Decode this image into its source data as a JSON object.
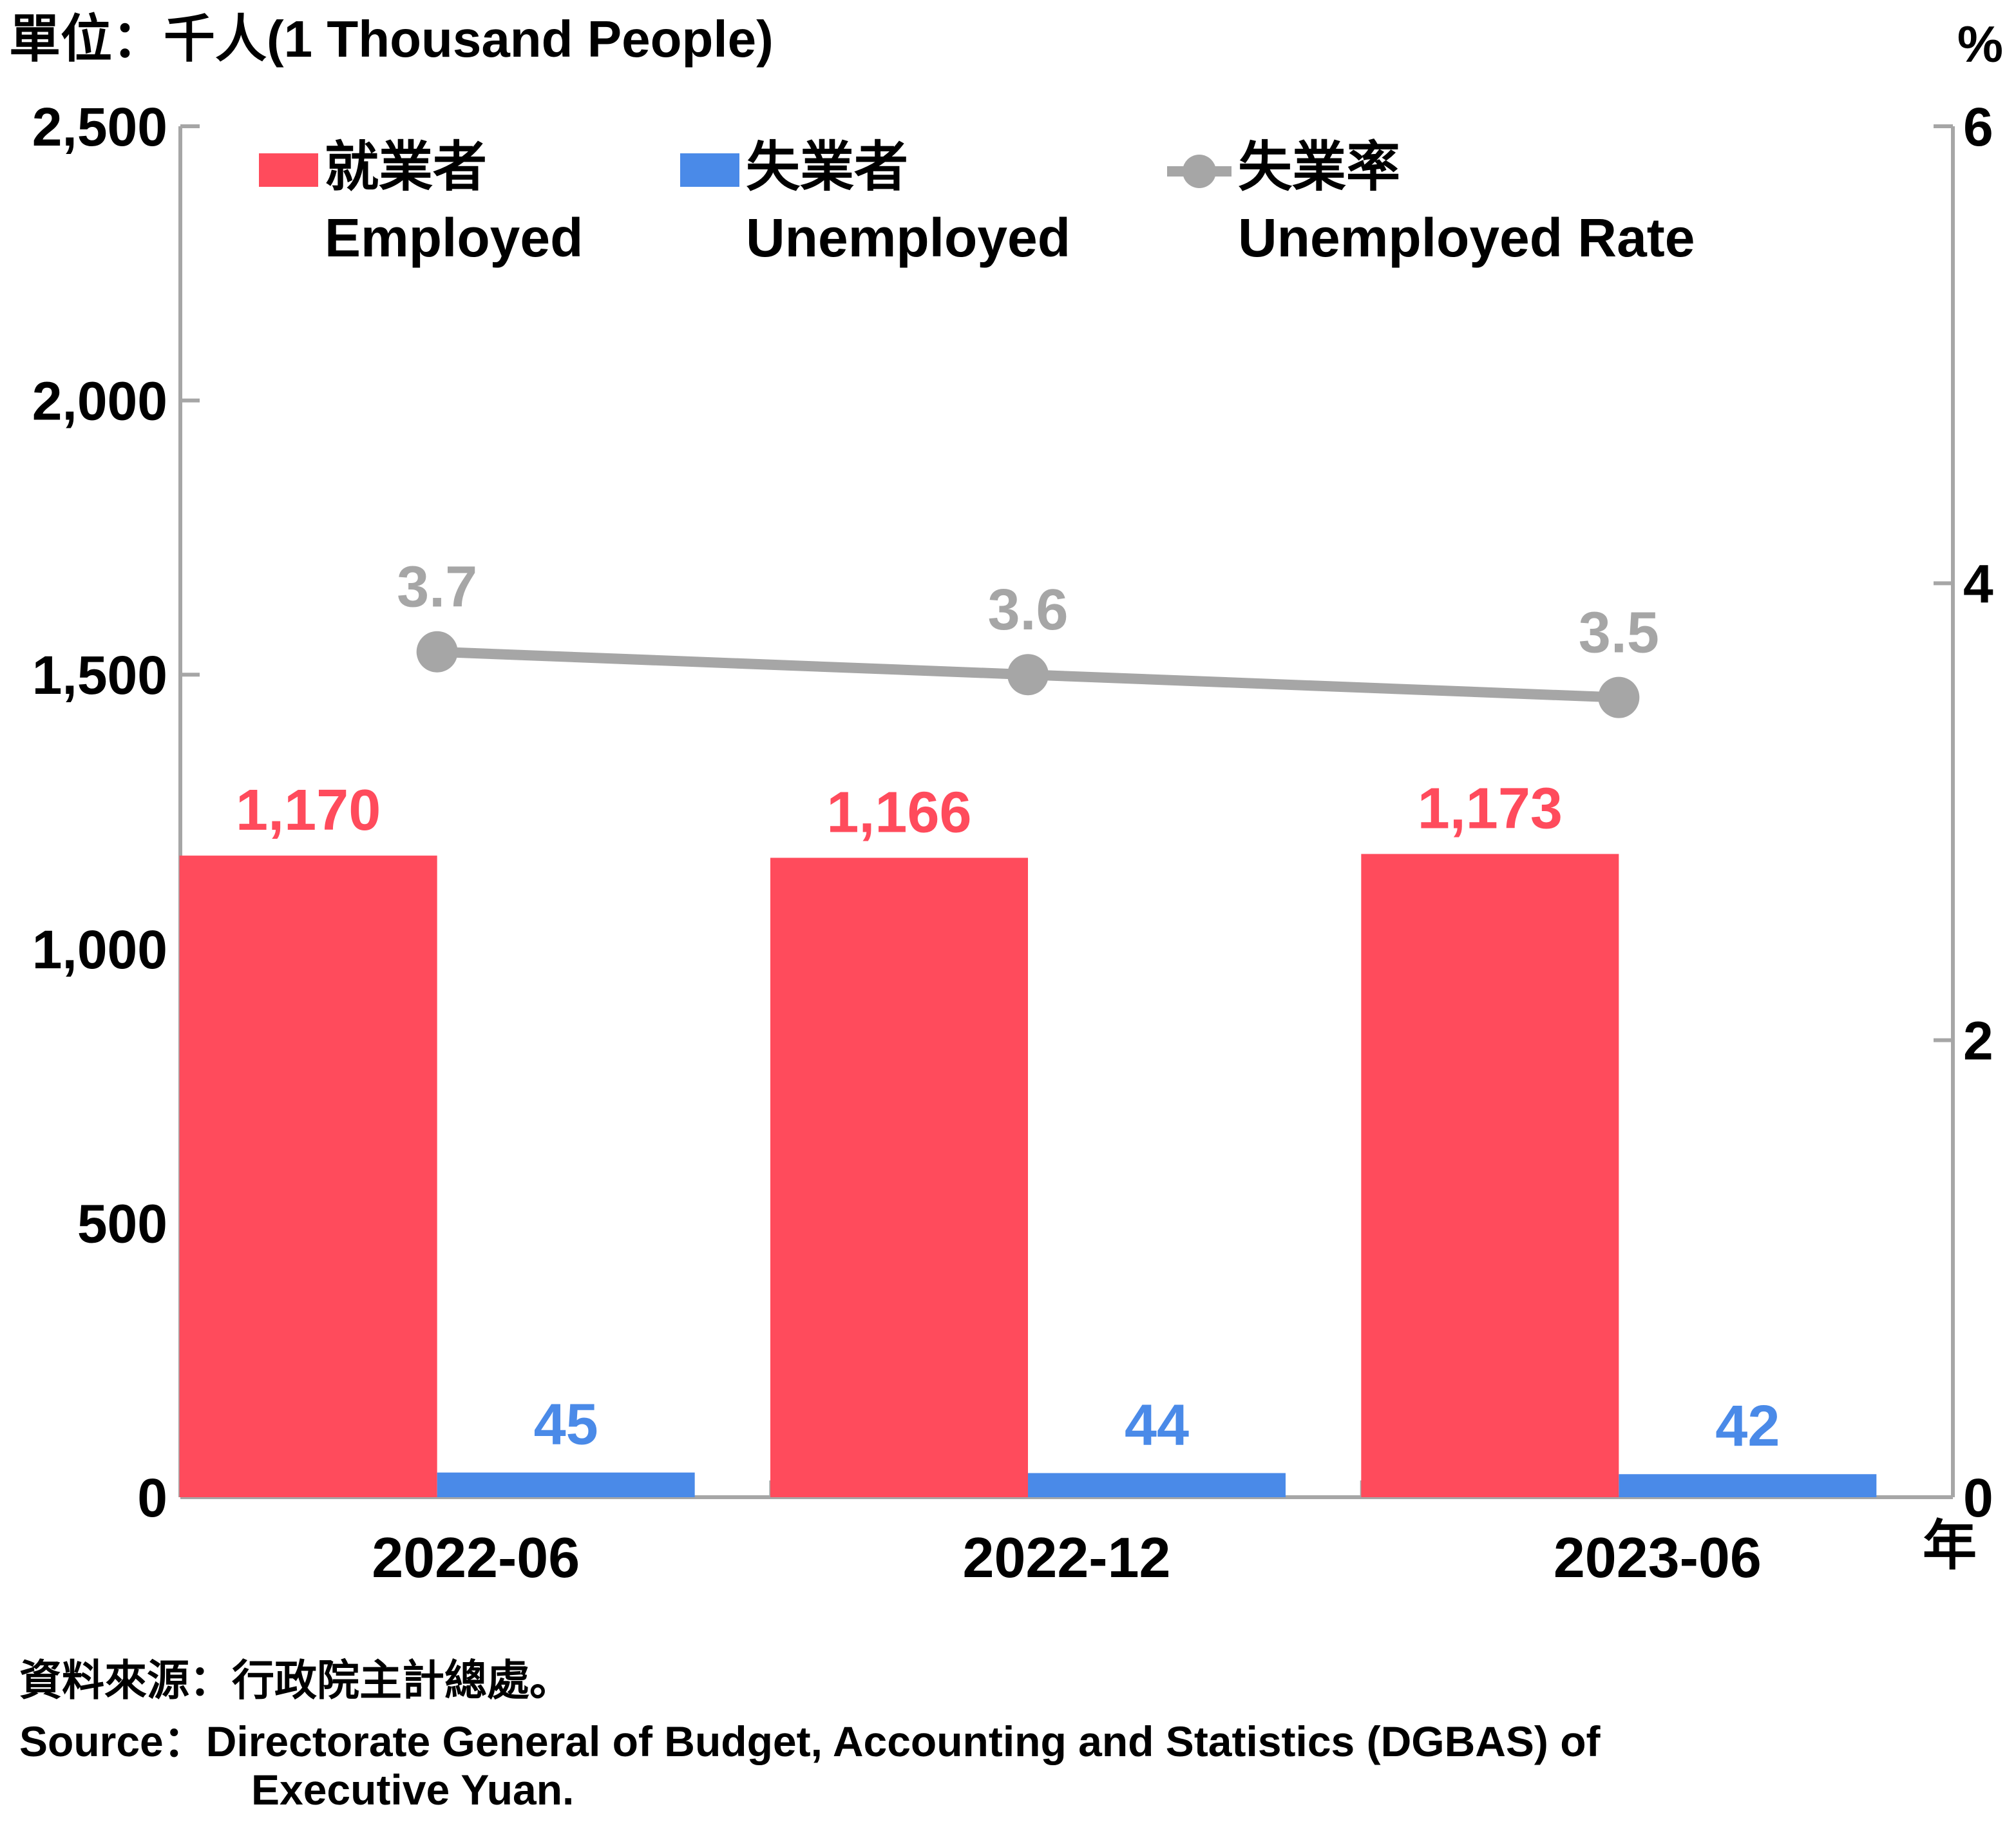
{
  "unit_left": "單位：千人(1 Thousand People)",
  "unit_right": "%",
  "x_unit": "年",
  "source": {
    "zh": "資料來源：行政院主計總處。",
    "en_line1": "Source：Directorate General of Budget, Accounting and Statistics (DGBAS) of",
    "en_line2": "Executive Yuan."
  },
  "colors": {
    "employed": "#ff4b5c",
    "unemployed": "#4a8ae8",
    "rate": "#a6a6a6",
    "axis": "#a6a6a6"
  },
  "chart_data": {
    "type": "bar",
    "categories": [
      "2022-06",
      "2022-12",
      "2023-06"
    ],
    "series": [
      {
        "name": "就業者 Employed",
        "name_zh": "就業者",
        "name_en": "Employed",
        "type": "bar",
        "axis": "left",
        "values": [
          1170,
          1166,
          1173
        ],
        "labels": [
          "1,170",
          "1,166",
          "1,173"
        ]
      },
      {
        "name": "失業者 Unemployed",
        "name_zh": "失業者",
        "name_en": "Unemployed",
        "type": "bar",
        "axis": "left",
        "values": [
          45,
          44,
          42
        ],
        "labels": [
          "45",
          "44",
          "42"
        ]
      },
      {
        "name": "失業率 Unemployed Rate",
        "name_zh": "失業率",
        "name_en": "Unemployed Rate",
        "type": "line",
        "axis": "right",
        "values": [
          3.7,
          3.6,
          3.5
        ],
        "labels": [
          "3.7",
          "3.6",
          "3.5"
        ]
      }
    ],
    "y_left": {
      "min": 0,
      "max": 2500,
      "ticks": [
        0,
        500,
        1000,
        1500,
        2000,
        2500
      ],
      "tick_labels": [
        "0",
        "500",
        "1,000",
        "1,500",
        "2,000",
        "2,500"
      ]
    },
    "y_right": {
      "min": 0,
      "max": 6,
      "ticks": [
        0,
        2,
        4,
        6
      ],
      "tick_labels": [
        "0",
        "2",
        "4",
        "6"
      ]
    },
    "grid": false,
    "legend_position": "top"
  }
}
